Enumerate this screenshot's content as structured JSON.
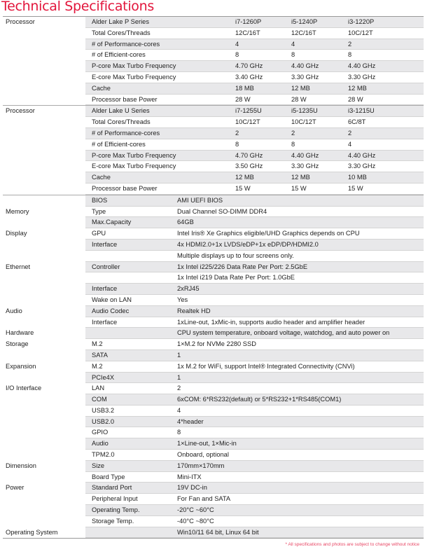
{
  "title": "Technical Specifications",
  "processor_groups": [
    {
      "category": "Processor",
      "rows": [
        [
          "Alder Lake P Series",
          "i7-1260P",
          "i5-1240P",
          "i3-1220P"
        ],
        [
          "Total Cores/Threads",
          "12C/16T",
          "12C/16T",
          "10C/12T"
        ],
        [
          "# of Performance-cores",
          "4",
          "4",
          "2"
        ],
        [
          "# of Efficient-cores",
          "8",
          "8",
          "8"
        ],
        [
          "P-core Max Turbo Frequency",
          "4.70 GHz",
          "4.40 GHz",
          "4.40 GHz"
        ],
        [
          "E-core Max Turbo Frequency",
          "3.40 GHz",
          "3.30 GHz",
          "3.30 GHz"
        ],
        [
          "Cache",
          "18 MB",
          "12 MB",
          "12 MB"
        ],
        [
          "Processor base Power",
          "28 W",
          "28 W",
          "28 W"
        ]
      ]
    },
    {
      "category": "Processor",
      "rows": [
        [
          "Alder Lake U Series",
          "i7-1255U",
          "i5-1235U",
          "i3-1215U"
        ],
        [
          "Total Cores/Threads",
          "10C/12T",
          "10C/12T",
          "6C/8T"
        ],
        [
          "# of Performance-cores",
          "2",
          "2",
          "2"
        ],
        [
          "# of Efficient-cores",
          "8",
          "8",
          "4"
        ],
        [
          "P-core Max Turbo Frequency",
          "4.70 GHz",
          "4.40 GHz",
          "4.40 GHz"
        ],
        [
          "E-core Max Turbo Frequency",
          "3.50 GHz",
          "3.30 GHz",
          "3.30 GHz"
        ],
        [
          "Cache",
          "12 MB",
          "12 MB",
          "10 MB"
        ],
        [
          "Processor base Power",
          "15 W",
          "15 W",
          "15 W"
        ]
      ]
    }
  ],
  "spec_rows": [
    [
      "",
      "BIOS",
      "AMI UEFI BIOS"
    ],
    [
      "Memory",
      "Type",
      "Dual Channel SO-DIMM DDR4"
    ],
    [
      "",
      "Max.Capacity",
      "64GB"
    ],
    [
      "Display",
      "GPU",
      "Intel Iris® Xe Graphics eligible/UHD Graphics depends on CPU"
    ],
    [
      "",
      "Interface",
      "4x HDMI2.0+1x LVDS/eDP+1x eDP/DP/HDMI2.0"
    ],
    [
      "",
      "",
      "Multiple displays up to four screens only."
    ],
    [
      "Ethernet",
      "Controller",
      "1x Intel i225/226 Data Rate Per Port: 2.5GbE"
    ],
    [
      "",
      "",
      "1x Intel i219 Data Rate Per Port: 1.0GbE"
    ],
    [
      "",
      "Interface",
      "2xRJ45"
    ],
    [
      "",
      "Wake on LAN",
      "Yes"
    ],
    [
      "Audio",
      "Audio Codec",
      "Realtek HD"
    ],
    [
      "",
      "Interface",
      "1xLine-out, 1xMic-in, supports audio header and amplifier header"
    ],
    [
      "Hardware",
      "",
      " CPU system temperature, onboard voltage, watchdog, and auto power on"
    ],
    [
      "Storage",
      "M.2",
      "1×M.2 for NVMe 2280 SSD"
    ],
    [
      "",
      "SATA",
      "1"
    ],
    [
      "Expansion",
      "M.2",
      "1x M.2 for WiFi, support Intel® Integrated Connectivity (CNVi)"
    ],
    [
      "",
      "PCIe4X",
      "1"
    ],
    [
      "I/O Interface",
      "LAN",
      "2"
    ],
    [
      "",
      "COM",
      "6xCOM: 6*RS232(default) or 5*RS232+1*RS485(COM1)"
    ],
    [
      "",
      "USB3.2",
      "4"
    ],
    [
      "",
      "USB2.0",
      "4*header"
    ],
    [
      "",
      "GPIO",
      "8"
    ],
    [
      "",
      "Audio",
      "1×Line-out, 1×Mic-in"
    ],
    [
      "",
      "TPM2.0",
      "Onboard, optional"
    ],
    [
      "Dimension",
      "Size",
      "170mm×170mm"
    ],
    [
      "",
      "Board Type",
      "Mini-ITX"
    ],
    [
      "Power",
      "Standard Port",
      "19V DC-in"
    ],
    [
      "",
      "Peripheral Input",
      "For Fan and SATA"
    ],
    [
      "",
      "Operating Temp.",
      "-20°C ~60°C"
    ],
    [
      "",
      "Storage Temp.",
      "-40°C ~80°C"
    ],
    [
      "Operating System",
      "",
      "Win10/11 64 bit, Linux 64 bit"
    ]
  ],
  "footnote": "* All specifications and photos are subject to change without notice",
  "colors": {
    "title": "#e2163c",
    "row_shade": "#e8e8ea"
  }
}
